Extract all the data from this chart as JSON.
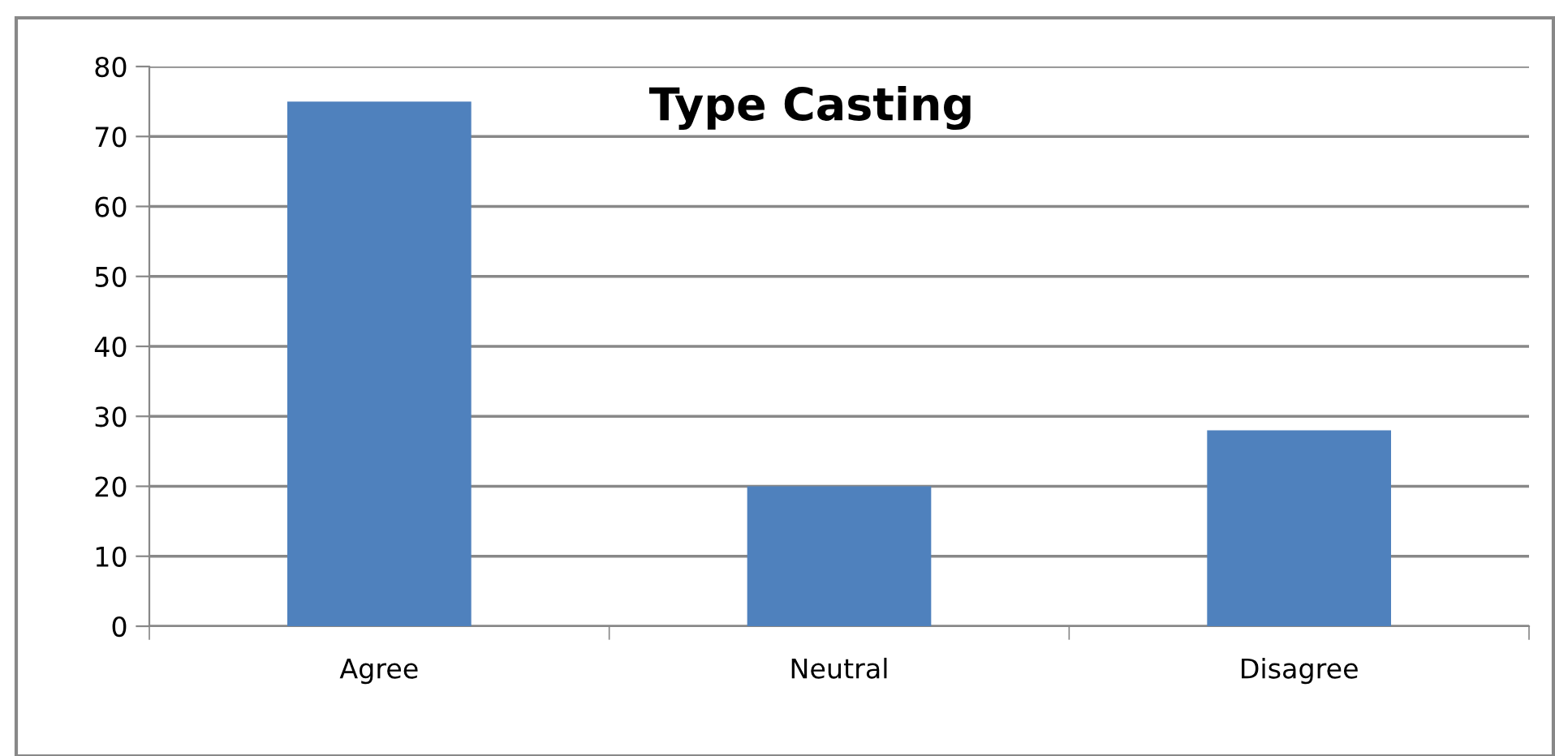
{
  "chart_data": {
    "type": "bar",
    "title": "Type Casting",
    "categories": [
      "Agree",
      "Neutral",
      "Disagree"
    ],
    "values": [
      75,
      20,
      28
    ],
    "color": "#4f81bd",
    "ylim": [
      0,
      80
    ],
    "yticks": [
      0,
      10,
      20,
      30,
      40,
      50,
      60,
      70,
      80
    ],
    "grid": "y",
    "legend": false
  }
}
